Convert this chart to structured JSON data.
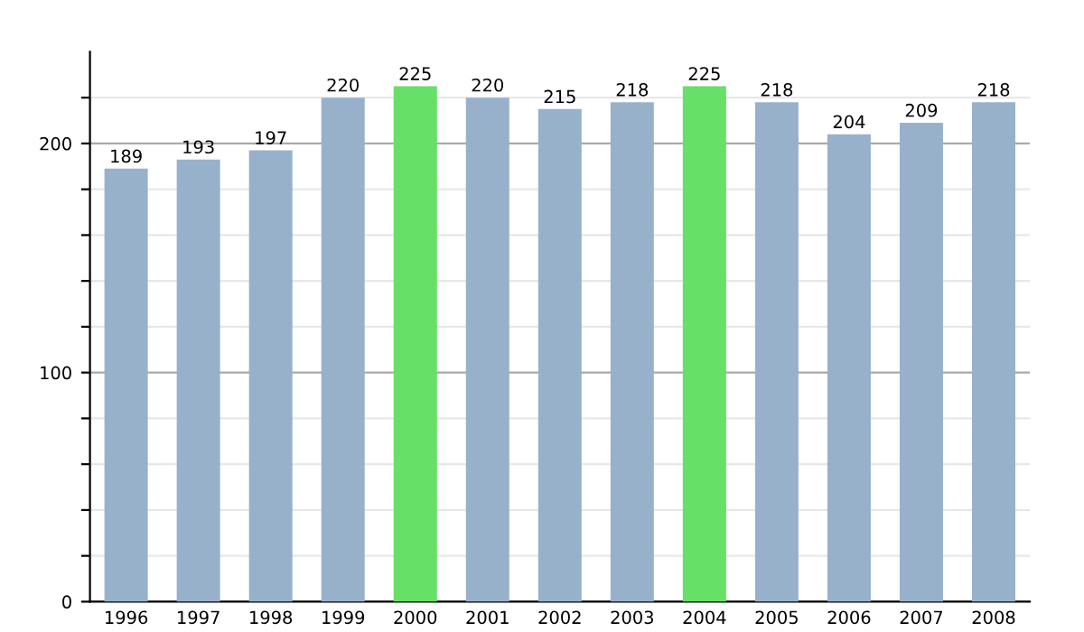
{
  "chart_data": {
    "type": "bar",
    "categories": [
      "1996",
      "1997",
      "1998",
      "1999",
      "2000",
      "2001",
      "2002",
      "2003",
      "2004",
      "2005",
      "2006",
      "2007",
      "2008"
    ],
    "values": [
      189,
      193,
      197,
      220,
      225,
      220,
      215,
      218,
      225,
      218,
      204,
      209,
      218
    ],
    "colors": [
      "#98b1cb",
      "#98b1cb",
      "#98b1cb",
      "#98b1cb",
      "#66e066",
      "#98b1cb",
      "#98b1cb",
      "#98b1cb",
      "#66e066",
      "#98b1cb",
      "#98b1cb",
      "#98b1cb",
      "#98b1cb"
    ],
    "data_labels": true,
    "ylim": [
      0,
      240
    ],
    "yticks": [
      0,
      {
        "value": 20,
        "label": null
      },
      {
        "value": 40,
        "label": null
      },
      {
        "value": 60,
        "label": null
      },
      {
        "value": 80,
        "label": null
      },
      100,
      {
        "value": 120,
        "label": null
      },
      {
        "value": 140,
        "label": null
      },
      {
        "value": 160,
        "label": null
      },
      {
        "value": 180,
        "label": null
      },
      200,
      {
        "value": 220,
        "label": null
      }
    ],
    "grid": "y"
  }
}
